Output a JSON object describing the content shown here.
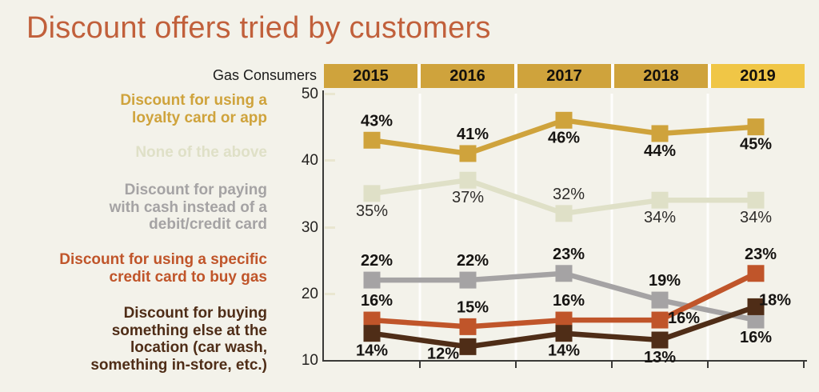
{
  "chart_data": {
    "type": "line",
    "title": "Discount offers tried by customers",
    "group_label": "Gas Consumers",
    "categories": [
      "2015",
      "2016",
      "2017",
      "2018",
      "2019"
    ],
    "ylim": [
      10,
      50
    ],
    "yticks": [
      50,
      40,
      30,
      20,
      10
    ],
    "legend_position": "left",
    "grid": "vertical column separators, no horizontal gridlines",
    "header_colors": {
      "default": "#CFA33C",
      "last": "#F0C646"
    },
    "colors": {
      "background": "#F3F2EA",
      "title": "#C1603B",
      "axis": "#3A3A38",
      "label": "#161412",
      "column_separator": "#FFFFFF",
      "y_tick_cream": "#E9E6D0"
    },
    "series": [
      {
        "name": "Discount for using a loyalty card or app",
        "legend_lines": [
          "Discount for using a",
          "loyalty card or app"
        ],
        "color": "#CFA33C",
        "values": [
          43,
          41,
          46,
          44,
          45
        ],
        "labels": [
          "43%",
          "41%",
          "46%",
          "44%",
          "45%"
        ],
        "bold_labels": true,
        "label_pos": [
          "above",
          "above",
          "below",
          "below",
          "below"
        ]
      },
      {
        "name": "None of the above",
        "legend_lines": [
          "None of the above"
        ],
        "color": "#DFE0C7",
        "values": [
          35,
          37,
          32,
          34,
          34
        ],
        "labels": [
          "35%",
          "37%",
          "32%",
          "34%",
          "34%"
        ],
        "bold_labels": false,
        "label_pos": [
          "below",
          "below",
          "above",
          "below",
          "below"
        ]
      },
      {
        "name": "Discount for paying with cash instead of a debit/credit card",
        "legend_lines": [
          "Discount for paying",
          "with cash instead of a",
          "debit/credit card"
        ],
        "color": "#A5A3A4",
        "values": [
          22,
          22,
          23,
          19,
          16
        ],
        "labels": [
          "22%",
          "22%",
          "23%",
          "19%",
          "16%"
        ],
        "bold_labels": true,
        "label_pos": [
          "above",
          "above",
          "above",
          "above",
          "below"
        ]
      },
      {
        "name": "Discount for using a specific credit card to buy gas",
        "legend_lines": [
          "Discount for using a specific",
          "credit card to buy gas"
        ],
        "color": "#C0552A",
        "values": [
          16,
          15,
          16,
          16,
          23
        ],
        "labels": [
          "16%",
          "15%",
          "16%",
          "16%",
          "23%"
        ],
        "bold_labels": true,
        "label_pos": [
          "above",
          "above",
          "above",
          "right",
          "above"
        ]
      },
      {
        "name": "Discount for buying something else at the location (car wash, something in-store, etc.)",
        "legend_lines": [
          "Discount for buying",
          "something else at the",
          "location (car wash,",
          "something in-store, etc.)"
        ],
        "color": "#4F2D17",
        "values": [
          14,
          12,
          14,
          13,
          18
        ],
        "labels": [
          "14%",
          "12%",
          "14%",
          "13%",
          "18%"
        ],
        "bold_labels": true,
        "label_pos": [
          "below",
          "below-left",
          "below",
          "below",
          "right-up"
        ]
      }
    ]
  }
}
